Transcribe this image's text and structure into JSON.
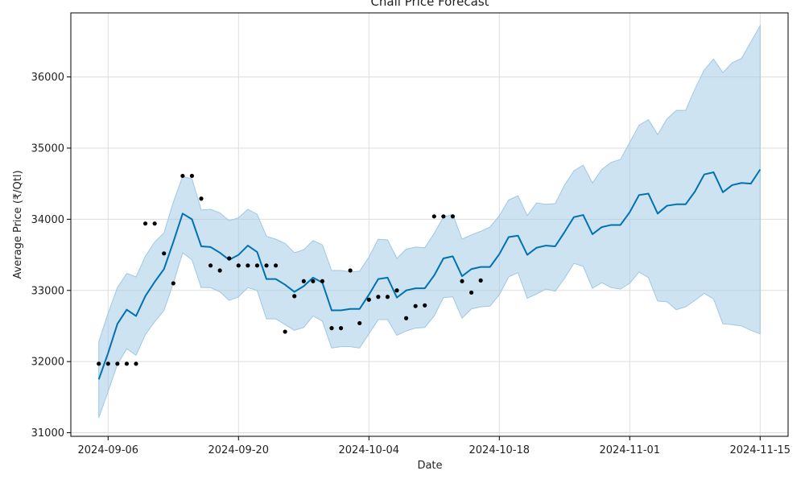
{
  "chart_data": {
    "type": "line",
    "title": "Chali Price Forecast",
    "xlabel": "Date",
    "ylabel": "Average Price (₹/Qtl)",
    "grid": true,
    "xlim": [
      "2024-09-02",
      "2024-11-18"
    ],
    "ylim": [
      30950,
      36900
    ],
    "x_ticks": [
      "2024-09-06",
      "2024-09-20",
      "2024-10-04",
      "2024-10-18",
      "2024-11-01",
      "2024-11-15"
    ],
    "y_ticks": [
      31000,
      32000,
      33000,
      34000,
      35000,
      36000
    ],
    "colors": {
      "forecast_line": "#0072b2",
      "uncertainty_band": "#9ec8e3",
      "observed_points": "#000000",
      "grid": "#dddddd"
    },
    "observed": {
      "x": [
        "2024-09-05",
        "2024-09-06",
        "2024-09-07",
        "2024-09-08",
        "2024-09-09",
        "2024-09-10",
        "2024-09-11",
        "2024-09-12",
        "2024-09-13",
        "2024-09-14",
        "2024-09-15",
        "2024-09-16",
        "2024-09-17",
        "2024-09-18",
        "2024-09-19",
        "2024-09-20",
        "2024-09-21",
        "2024-09-22",
        "2024-09-23",
        "2024-09-24",
        "2024-09-25",
        "2024-09-26",
        "2024-09-27",
        "2024-09-28",
        "2024-09-29",
        "2024-09-30",
        "2024-10-01",
        "2024-10-02",
        "2024-10-03",
        "2024-10-04",
        "2024-10-05",
        "2024-10-06",
        "2024-10-07",
        "2024-10-08",
        "2024-10-09",
        "2024-10-10",
        "2024-10-11",
        "2024-10-12",
        "2024-10-13",
        "2024-10-14",
        "2024-10-15",
        "2024-10-16"
      ],
      "y": [
        31970,
        31970,
        31970,
        31970,
        31970,
        33940,
        33940,
        33520,
        33100,
        34610,
        34610,
        34290,
        33350,
        33280,
        33450,
        33350,
        33350,
        33350,
        33350,
        33350,
        32420,
        32920,
        33130,
        33130,
        33130,
        32470,
        32470,
        33280,
        32540,
        32870,
        32910,
        32910,
        33000,
        32610,
        32780,
        32790,
        34040,
        34040,
        34040,
        33130,
        32970,
        33140
      ]
    },
    "forecast": {
      "x": [
        "2024-09-05",
        "2024-09-06",
        "2024-09-07",
        "2024-09-08",
        "2024-09-09",
        "2024-09-10",
        "2024-09-11",
        "2024-09-12",
        "2024-09-13",
        "2024-09-14",
        "2024-09-15",
        "2024-09-16",
        "2024-09-17",
        "2024-09-18",
        "2024-09-19",
        "2024-09-20",
        "2024-09-21",
        "2024-09-22",
        "2024-09-23",
        "2024-09-24",
        "2024-09-25",
        "2024-09-26",
        "2024-09-27",
        "2024-09-28",
        "2024-09-29",
        "2024-09-30",
        "2024-10-01",
        "2024-10-02",
        "2024-10-03",
        "2024-10-04",
        "2024-10-05",
        "2024-10-06",
        "2024-10-07",
        "2024-10-08",
        "2024-10-09",
        "2024-10-10",
        "2024-10-11",
        "2024-10-12",
        "2024-10-13",
        "2024-10-14",
        "2024-10-15",
        "2024-10-16",
        "2024-10-17",
        "2024-10-18",
        "2024-10-19",
        "2024-10-20",
        "2024-10-21",
        "2024-10-22",
        "2024-10-23",
        "2024-10-24",
        "2024-10-25",
        "2024-10-26",
        "2024-10-27",
        "2024-10-28",
        "2024-10-29",
        "2024-10-30",
        "2024-10-31",
        "2024-11-01",
        "2024-11-02",
        "2024-11-03",
        "2024-11-04",
        "2024-11-05",
        "2024-11-06",
        "2024-11-07",
        "2024-11-08",
        "2024-11-09",
        "2024-11-10",
        "2024-11-11",
        "2024-11-12",
        "2024-11-13",
        "2024-11-14",
        "2024-11-15"
      ],
      "yhat": [
        31750,
        32120,
        32530,
        32730,
        32640,
        32920,
        33120,
        33300,
        33680,
        34080,
        34000,
        33620,
        33610,
        33530,
        33430,
        33500,
        33630,
        33540,
        33160,
        33160,
        33080,
        32980,
        33060,
        33180,
        33110,
        32720,
        32720,
        32740,
        32740,
        32940,
        33160,
        33180,
        32900,
        33000,
        33030,
        33030,
        33210,
        33450,
        33480,
        33200,
        33300,
        33330,
        33330,
        33510,
        33750,
        33770,
        33500,
        33600,
        33630,
        33620,
        33820,
        34030,
        34060,
        33790,
        33890,
        33920,
        33920,
        34100,
        34340,
        34360,
        34080,
        34190,
        34210,
        34210,
        34390,
        34630,
        34660,
        34380,
        34480,
        34510,
        34500,
        34700
      ],
      "yhat_upper": [
        32280,
        32680,
        33040,
        33240,
        33190,
        33480,
        33680,
        33810,
        34240,
        34600,
        34570,
        34130,
        34140,
        34090,
        33980,
        34020,
        34140,
        34070,
        33760,
        33720,
        33660,
        33530,
        33570,
        33700,
        33640,
        33280,
        33280,
        33260,
        33270,
        33470,
        33720,
        33710,
        33450,
        33580,
        33610,
        33600,
        33800,
        34030,
        34070,
        33720,
        33780,
        33830,
        33890,
        34050,
        34270,
        34330,
        34050,
        34230,
        34210,
        34220,
        34480,
        34680,
        34760,
        34510,
        34700,
        34800,
        34840,
        35080,
        35320,
        35400,
        35190,
        35410,
        35530,
        35530,
        35830,
        36100,
        36250,
        36060,
        36200,
        36260,
        36490,
        36720
      ],
      "yhat_lower": [
        31210,
        31580,
        31960,
        32180,
        32090,
        32380,
        32560,
        32720,
        33100,
        33530,
        33430,
        33040,
        33040,
        32980,
        32860,
        32910,
        33040,
        33000,
        32600,
        32600,
        32520,
        32440,
        32480,
        32640,
        32570,
        32190,
        32210,
        32210,
        32190,
        32390,
        32590,
        32590,
        32370,
        32430,
        32470,
        32480,
        32640,
        32900,
        32910,
        32610,
        32740,
        32770,
        32780,
        32940,
        33190,
        33250,
        32890,
        32950,
        33020,
        32990,
        33170,
        33380,
        33340,
        33030,
        33110,
        33040,
        33020,
        33100,
        33260,
        33180,
        32850,
        32840,
        32730,
        32770,
        32860,
        32960,
        32880,
        32530,
        32520,
        32500,
        32440,
        32390
      ]
    }
  }
}
